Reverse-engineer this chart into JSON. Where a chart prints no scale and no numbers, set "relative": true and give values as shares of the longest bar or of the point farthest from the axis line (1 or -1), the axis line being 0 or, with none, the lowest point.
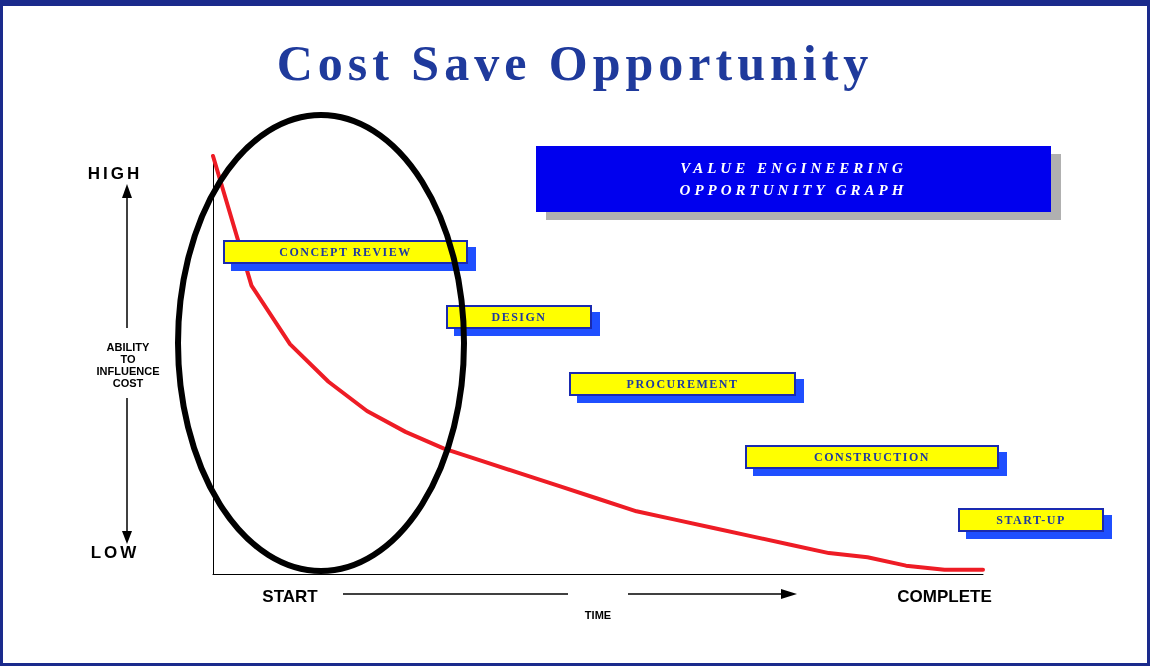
{
  "chart_data": {
    "type": "line",
    "title": "Cost Save Opportunity",
    "subtitle": "VALUE ENGINEERING OPPORTUNITY GRAPH",
    "xlabel": "TIME",
    "ylabel": "ABILITY TO INFLUENCE COST",
    "categories": [
      null,
      null,
      "START",
      null,
      null,
      null,
      null,
      null,
      null,
      null,
      null,
      null,
      null,
      null,
      null,
      null,
      null,
      null,
      null,
      "COMPLETE",
      null
    ],
    "series": [
      {
        "color": "#ee1c25",
        "values": [
          1,
          0.69,
          0.55,
          0.46,
          0.39,
          0.34,
          0.3,
          0.27,
          0.24,
          0.21,
          0.18,
          0.15,
          0.13,
          0.11,
          0.09,
          0.07,
          0.05,
          0.04,
          0.02,
          0.01,
          0.01
        ]
      }
    ],
    "relative": true,
    "annotations": [
      "HIGH",
      "LOW",
      "CONCEPT REVIEW",
      "DESIGN",
      "PROCUREMENT",
      "CONSTRUCTION",
      "START-UP"
    ],
    "grid": false,
    "marker": "none",
    "line_style": "solid"
  }
}
